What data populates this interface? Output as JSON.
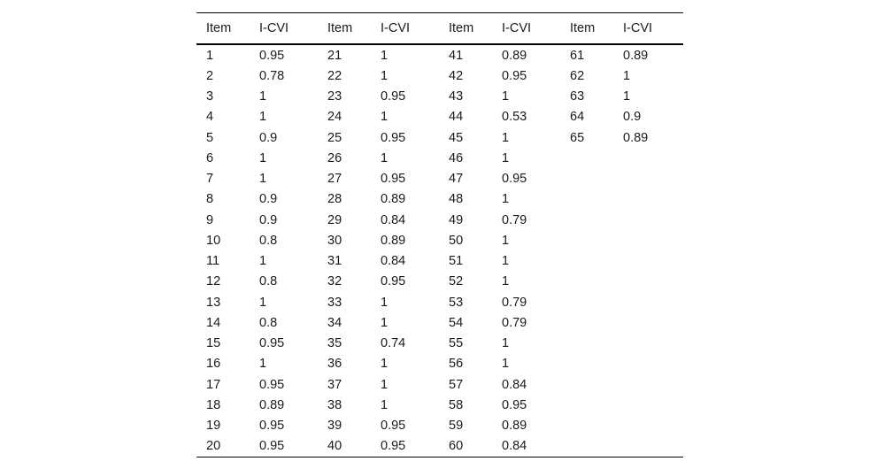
{
  "table": {
    "headers": [
      "Item",
      "I-CVI",
      "Item",
      "I-CVI",
      "Item",
      "I-CVI",
      "Item",
      "I-CVI"
    ],
    "rows": [
      [
        "1",
        "0.95",
        "21",
        "1",
        "41",
        "0.89",
        "61",
        "0.89"
      ],
      [
        "2",
        "0.78",
        "22",
        "1",
        "42",
        "0.95",
        "62",
        "1"
      ],
      [
        "3",
        "1",
        "23",
        "0.95",
        "43",
        "1",
        "63",
        "1"
      ],
      [
        "4",
        "1",
        "24",
        "1",
        "44",
        "0.53",
        "64",
        "0.9"
      ],
      [
        "5",
        "0.9",
        "25",
        "0.95",
        "45",
        "1",
        "65",
        "0.89"
      ],
      [
        "6",
        "1",
        "26",
        "1",
        "46",
        "1",
        "",
        ""
      ],
      [
        "7",
        "1",
        "27",
        "0.95",
        "47",
        "0.95",
        "",
        ""
      ],
      [
        "8",
        "0.9",
        "28",
        "0.89",
        "48",
        "1",
        "",
        ""
      ],
      [
        "9",
        "0.9",
        "29",
        "0.84",
        "49",
        "0.79",
        "",
        ""
      ],
      [
        "10",
        "0.8",
        "30",
        "0.89",
        "50",
        "1",
        "",
        ""
      ],
      [
        "11",
        "1",
        "31",
        "0.84",
        "51",
        "1",
        "",
        ""
      ],
      [
        "12",
        "0.8",
        "32",
        "0.95",
        "52",
        "1",
        "",
        ""
      ],
      [
        "13",
        "1",
        "33",
        "1",
        "53",
        "0.79",
        "",
        ""
      ],
      [
        "14",
        "0.8",
        "34",
        "1",
        "54",
        "0.79",
        "",
        ""
      ],
      [
        "15",
        "0.95",
        "35",
        "0.74",
        "55",
        "1",
        "",
        ""
      ],
      [
        "16",
        "1",
        "36",
        "1",
        "56",
        "1",
        "",
        ""
      ],
      [
        "17",
        "0.95",
        "37",
        "1",
        "57",
        "0.84",
        "",
        ""
      ],
      [
        "18",
        "0.89",
        "38",
        "1",
        "58",
        "0.95",
        "",
        ""
      ],
      [
        "19",
        "0.95",
        "39",
        "0.95",
        "59",
        "0.89",
        "",
        ""
      ],
      [
        "20",
        "0.95",
        "40",
        "0.95",
        "60",
        "0.84",
        "",
        ""
      ]
    ]
  }
}
